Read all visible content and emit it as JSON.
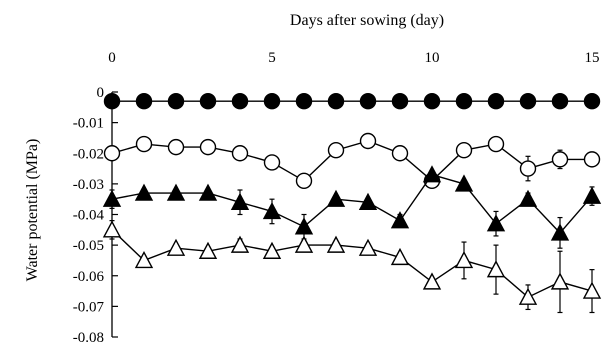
{
  "chart_data": {
    "type": "line",
    "xlabel": "Days after sowing (day)",
    "ylabel": "Water potential (MPa)",
    "xlim": [
      0,
      15.5
    ],
    "ylim": [
      -0.08,
      0
    ],
    "xticks": [
      0,
      5,
      10,
      15
    ],
    "yticks": [
      0,
      -0.01,
      -0.02,
      -0.03,
      -0.04,
      -0.05,
      -0.06,
      -0.07,
      -0.08
    ],
    "x_tick_labels": [
      "0",
      "5",
      "10",
      "15"
    ],
    "y_tick_labels": [
      "0",
      "-0.01",
      "-0.02",
      "-0.03",
      "-0.04",
      "-0.05",
      "-0.06",
      "-0.07",
      "-0.08"
    ],
    "x_axis_position": "top",
    "grid": false,
    "x": [
      0,
      1,
      2,
      3,
      4,
      5,
      6,
      7,
      8,
      9,
      10,
      11,
      12,
      13,
      14,
      15
    ],
    "series": [
      {
        "marker": "filled-circle",
        "values": [
          -0.003,
          -0.003,
          -0.003,
          -0.003,
          -0.003,
          -0.003,
          -0.003,
          -0.003,
          -0.003,
          -0.003,
          -0.003,
          -0.003,
          -0.003,
          -0.003,
          -0.003,
          -0.003
        ],
        "errors": [
          0,
          0,
          0,
          0,
          0,
          0,
          0,
          0,
          0,
          0,
          0,
          0,
          0,
          0,
          0,
          0
        ]
      },
      {
        "marker": "open-circle",
        "values": [
          -0.02,
          -0.017,
          -0.018,
          -0.018,
          -0.02,
          -0.023,
          -0.029,
          -0.019,
          -0.016,
          -0.02,
          -0.029,
          -0.019,
          -0.017,
          -0.025,
          -0.022,
          -0.022
        ],
        "errors": [
          0,
          0,
          0,
          0,
          0,
          0,
          0,
          0,
          0,
          0,
          0.002,
          0,
          0,
          0.004,
          0.003,
          0
        ]
      },
      {
        "marker": "filled-triangle",
        "values": [
          -0.035,
          -0.033,
          -0.033,
          -0.033,
          -0.036,
          -0.039,
          -0.044,
          -0.035,
          -0.036,
          -0.042,
          -0.027,
          -0.03,
          -0.043,
          -0.035,
          -0.046,
          -0.034
        ],
        "errors": [
          0.003,
          0,
          0,
          0.001,
          0.004,
          0.004,
          0.004,
          0,
          0,
          0.002,
          0,
          0,
          0.004,
          0.002,
          0.005,
          0.003
        ]
      },
      {
        "marker": "open-triangle",
        "values": [
          -0.045,
          -0.055,
          -0.051,
          -0.052,
          -0.05,
          -0.052,
          -0.05,
          -0.05,
          -0.051,
          -0.054,
          -0.062,
          -0.055,
          -0.058,
          -0.067,
          -0.062,
          -0.065
        ],
        "errors": [
          0.003,
          0,
          0,
          0,
          0.002,
          0,
          0,
          0,
          0,
          0,
          0,
          0.006,
          0.008,
          0.004,
          0.01,
          0.007
        ]
      }
    ]
  }
}
